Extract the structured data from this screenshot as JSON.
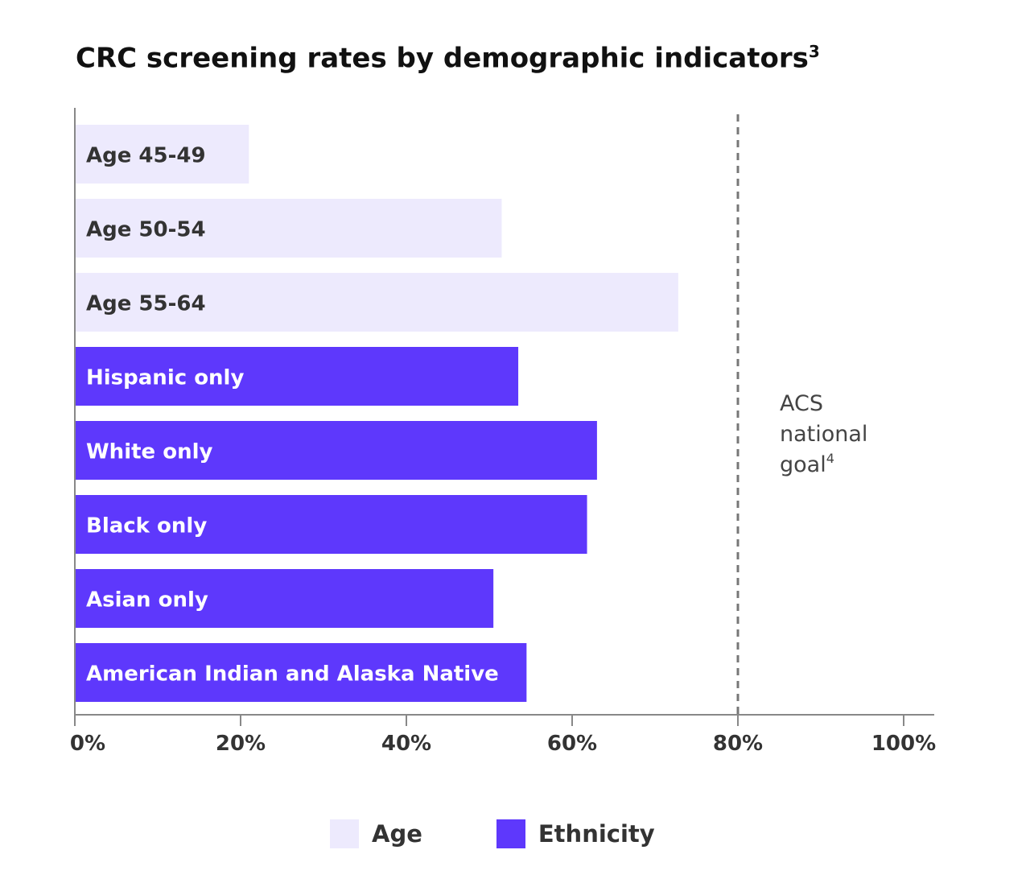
{
  "title": "CRC screening rates by demographic indicators",
  "title_sup": "3",
  "colors": {
    "age": "#EDEAFD",
    "ethnicity": "#5E38FC",
    "axis": "#888888",
    "goal_line": "#777777"
  },
  "chart_data": {
    "type": "bar",
    "orientation": "horizontal",
    "title": "CRC screening rates by demographic indicators",
    "categories": [
      "Age 45-49",
      "Age 50-54",
      "Age 55-64",
      "Hispanic only",
      "White only",
      "Black only",
      "Asian only",
      "American Indian and Alaska Native"
    ],
    "values": [
      21,
      51.5,
      72.8,
      53.5,
      63,
      61.8,
      50.5,
      54.5
    ],
    "groups": [
      "Age",
      "Age",
      "Age",
      "Ethnicity",
      "Ethnicity",
      "Ethnicity",
      "Ethnicity",
      "Ethnicity"
    ],
    "xlim": [
      0,
      102
    ],
    "x_ticks": [
      "0%",
      "20%",
      "40%",
      "60%",
      "80%",
      "100%"
    ],
    "x_tick_values": [
      0,
      20,
      40,
      60,
      80,
      100
    ],
    "xlabel": "",
    "ylabel": "",
    "grid": false,
    "reference_line": {
      "value": 80,
      "label_lines": [
        "ACS",
        "national",
        "goal"
      ],
      "label_sup": "4"
    },
    "legend": {
      "position": "bottom-center",
      "entries": [
        "Age",
        "Ethnicity"
      ]
    }
  }
}
